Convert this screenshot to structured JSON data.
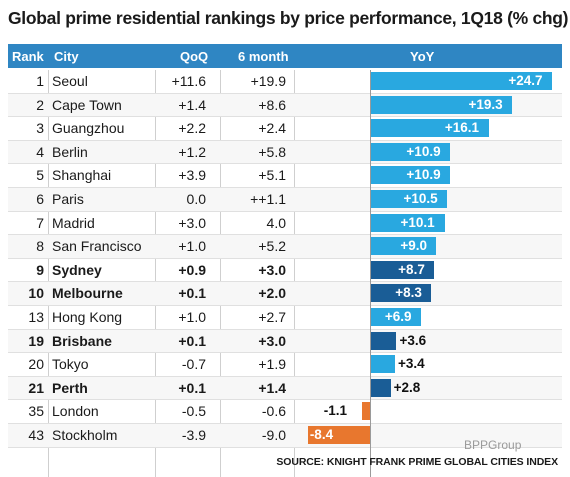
{
  "chart_data": {
    "type": "table",
    "title": "Global prime residential rankings by price performance, 1Q18 (% chg)",
    "columns": [
      "Rank",
      "City",
      "QoQ",
      "6 month",
      "YoY"
    ],
    "source": "SOURCE: KNIGHT FRANK PRIME GLOBAL CITIES INDEX",
    "yoy_range": [
      -10,
      26
    ],
    "colors": {
      "header": "#2f86c3",
      "bar_light": "#29a8e0",
      "bar_dark": "#1a5d96",
      "bar_negative": "#e8772e"
    },
    "rows": [
      {
        "rank": "1",
        "city": "Seoul",
        "qoq": "+11.6",
        "six": "+19.9",
        "yoy_label": "+24.7",
        "yoy": 24.7,
        "bold": false
      },
      {
        "rank": "2",
        "city": "Cape Town",
        "qoq": "+1.4",
        "six": "+8.6",
        "yoy_label": "+19.3",
        "yoy": 19.3,
        "bold": false
      },
      {
        "rank": "3",
        "city": "Guangzhou",
        "qoq": "+2.2",
        "six": "+2.4",
        "yoy_label": "+16.1",
        "yoy": 16.1,
        "bold": false
      },
      {
        "rank": "4",
        "city": "Berlin",
        "qoq": "+1.2",
        "six": "+5.8",
        "yoy_label": "+10.9",
        "yoy": 10.9,
        "bold": false
      },
      {
        "rank": "5",
        "city": "Shanghai",
        "qoq": "+3.9",
        "six": "+5.1",
        "yoy_label": "+10.9",
        "yoy": 10.9,
        "bold": false
      },
      {
        "rank": "6",
        "city": "Paris",
        "qoq": "0.0",
        "six": "++1.1",
        "yoy_label": "+10.5",
        "yoy": 10.5,
        "bold": false
      },
      {
        "rank": "7",
        "city": "Madrid",
        "qoq": "+3.0",
        "six": "4.0",
        "yoy_label": "+10.1",
        "yoy": 10.1,
        "bold": false
      },
      {
        "rank": "8",
        "city": "San Francisco",
        "qoq": "+1.0",
        "six": "+5.2",
        "yoy_label": "+9.0",
        "yoy": 9.0,
        "bold": false
      },
      {
        "rank": "9",
        "city": "Sydney",
        "qoq": "+0.9",
        "six": "+3.0",
        "yoy_label": "+8.7",
        "yoy": 8.7,
        "bold": true
      },
      {
        "rank": "10",
        "city": "Melbourne",
        "qoq": "+0.1",
        "six": "+2.0",
        "yoy_label": "+8.3",
        "yoy": 8.3,
        "bold": true
      },
      {
        "rank": "13",
        "city": "Hong Kong",
        "qoq": "+1.0",
        "six": "+2.7",
        "yoy_label": "+6.9",
        "yoy": 6.9,
        "bold": false
      },
      {
        "rank": "19",
        "city": "Brisbane",
        "qoq": "+0.1",
        "six": "+3.0",
        "yoy_label": "+3.6",
        "yoy": 3.6,
        "bold": true
      },
      {
        "rank": "20",
        "city": "Tokyo",
        "qoq": "-0.7",
        "six": "+1.9",
        "yoy_label": "+3.4",
        "yoy": 3.4,
        "bold": false
      },
      {
        "rank": "21",
        "city": "Perth",
        "qoq": "+0.1",
        "six": "+1.4",
        "yoy_label": "+2.8",
        "yoy": 2.8,
        "bold": true
      },
      {
        "rank": "35",
        "city": "London",
        "qoq": "-0.5",
        "six": "-0.6",
        "yoy_label": "-1.1",
        "yoy": -1.1,
        "bold": false
      },
      {
        "rank": "43",
        "city": "Stockholm",
        "qoq": "-3.9",
        "six": "-9.0",
        "yoy_label": "-8.4",
        "yoy": -8.4,
        "bold": false
      }
    ]
  },
  "watermark": "BPPGroup"
}
